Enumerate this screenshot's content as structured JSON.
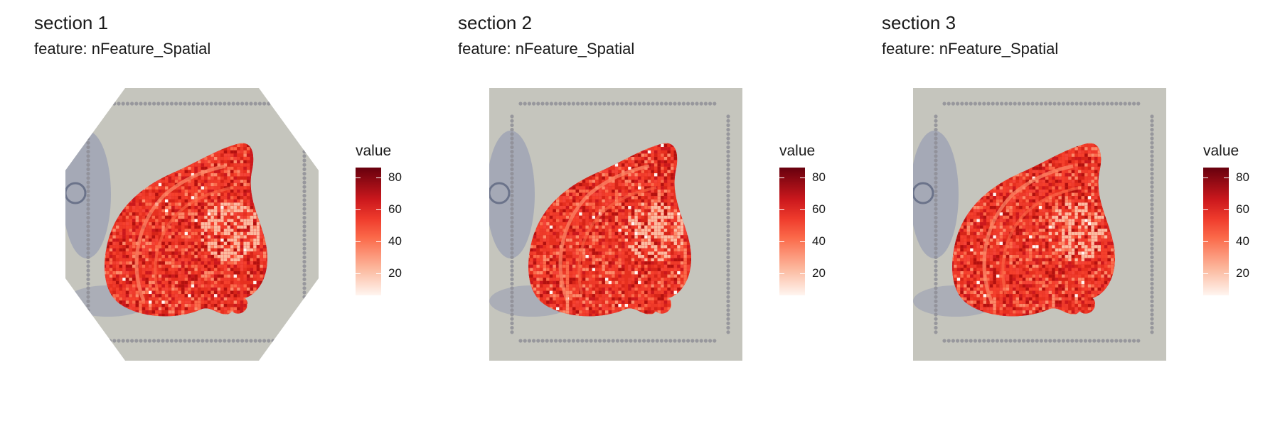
{
  "colors": {
    "background": "#ffffff",
    "slide": "#c5c5bd",
    "fiducial": "#8f8f97",
    "tissue_stain": "#8b92b0",
    "scale_low": "#fff5f0",
    "scale_high": "#67000d"
  },
  "panels": [
    {
      "title": "section 1",
      "subtitle": "feature:  nFeature_Spatial",
      "legend_title": "value",
      "ticks": [
        "80",
        "60",
        "40",
        "20"
      ],
      "image_shape": "octagon"
    },
    {
      "title": "section 2",
      "subtitle": "feature:  nFeature_Spatial",
      "legend_title": "value",
      "ticks": [
        "80",
        "60",
        "40",
        "20"
      ],
      "image_shape": "square"
    },
    {
      "title": "section 3",
      "subtitle": "feature:  nFeature_Spatial",
      "legend_title": "value",
      "ticks": [
        "80",
        "60",
        "40",
        "20"
      ],
      "image_shape": "square"
    }
  ],
  "chart_data": [
    {
      "type": "heatmap",
      "title": "section 1",
      "subtitle": "feature:  nFeature_Spatial",
      "legend_title": "value",
      "value_range": [
        5,
        87
      ],
      "legend_breaks": [
        20,
        40,
        60,
        80
      ],
      "scale": "white-to-dark-red"
    },
    {
      "type": "heatmap",
      "title": "section 2",
      "subtitle": "feature:  nFeature_Spatial",
      "legend_title": "value",
      "value_range": [
        5,
        87
      ],
      "legend_breaks": [
        20,
        40,
        60,
        80
      ],
      "scale": "white-to-dark-red"
    },
    {
      "type": "heatmap",
      "title": "section 3",
      "subtitle": "feature:  nFeature_Spatial",
      "legend_title": "value",
      "value_range": [
        5,
        87
      ],
      "legend_breaks": [
        20,
        40,
        60,
        80
      ],
      "scale": "white-to-dark-red"
    }
  ]
}
